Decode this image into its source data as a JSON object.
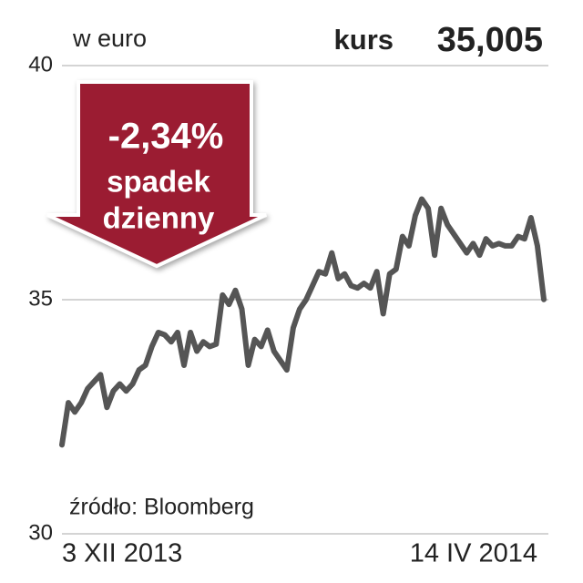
{
  "chart_data": {
    "type": "line",
    "unit_label": "w euro",
    "price_label": "kurs",
    "price_value": "35,005",
    "annotation": {
      "change": "-2,34%",
      "lines": [
        "spadek",
        "dzienny"
      ]
    },
    "source": "źródło: Bloomberg",
    "categories": [
      "3 XII 2013",
      null,
      null,
      null,
      null,
      null,
      null,
      null,
      null,
      null,
      null,
      null,
      null,
      null,
      null,
      null,
      null,
      null,
      null,
      null,
      null,
      null,
      null,
      null,
      null,
      null,
      null,
      null,
      null,
      null,
      null,
      null,
      null,
      null,
      null,
      null,
      null,
      null,
      null,
      null,
      null,
      null,
      null,
      null,
      null,
      null,
      null,
      null,
      null,
      null,
      null,
      null,
      null,
      null,
      null,
      null,
      null,
      null,
      null,
      null,
      null,
      null,
      null,
      null,
      null,
      null,
      null,
      null,
      null,
      null,
      null,
      null,
      null,
      null,
      null,
      "14 IV 2014"
    ],
    "series": [
      {
        "color": "#555555",
        "values": [
          31.9,
          32.8,
          32.6,
          32.8,
          33.1,
          33.25,
          33.4,
          32.7,
          33.05,
          33.2,
          33.05,
          33.2,
          33.5,
          33.6,
          34.0,
          34.3,
          34.25,
          34.1,
          34.3,
          33.6,
          34.3,
          33.9,
          34.1,
          34.0,
          34.05,
          35.1,
          34.9,
          35.2,
          34.8,
          33.6,
          34.15,
          34.0,
          34.35,
          33.9,
          33.7,
          33.5,
          34.4,
          34.8,
          35.0,
          35.3,
          35.6,
          35.55,
          36.0,
          35.45,
          35.55,
          35.3,
          35.25,
          35.35,
          35.25,
          35.6,
          34.7,
          35.55,
          35.65,
          36.35,
          36.15,
          36.8,
          37.15,
          36.95,
          35.95,
          36.95,
          36.6,
          36.4,
          36.2,
          36.0,
          36.2,
          35.95,
          36.3,
          36.15,
          36.2,
          36.15,
          36.15,
          36.35,
          36.3,
          36.75,
          36.15,
          35.005
        ]
      }
    ],
    "ylim": [
      30,
      40
    ],
    "yticks": [
      30,
      35,
      40
    ],
    "grid": true
  }
}
